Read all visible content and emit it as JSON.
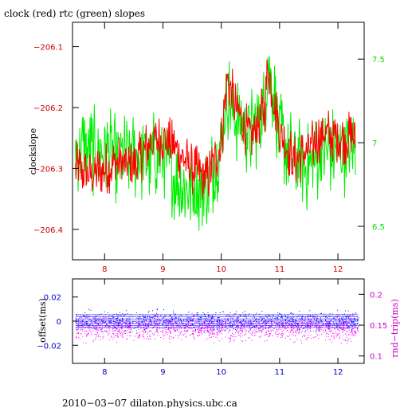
{
  "chart_data": [
    {
      "type": "line",
      "title": "clock (red) rtc (green) slopes",
      "ylabel": "clockslope",
      "xlim": [
        7.45,
        12.45
      ],
      "ylim": [
        -206.45,
        -206.06
      ],
      "y2lim": [
        6.3,
        7.72
      ],
      "x_ticks": [
        8,
        9,
        10,
        11,
        12
      ],
      "y_ticks": [
        -206.1,
        -206.2,
        -206.3,
        -206.4
      ],
      "y2_ticks": [
        6.5,
        7,
        7.5
      ],
      "grid": false,
      "series": [
        {
          "color": "#ff0000",
          "axis": "left",
          "x": [
            7.5,
            7.75,
            8,
            8.25,
            8.5,
            8.75,
            9,
            9.25,
            9.5,
            9.75,
            10,
            10.1,
            10.25,
            10.5,
            10.75,
            10.8,
            11,
            11.25,
            11.5,
            11.75,
            12,
            12.3
          ],
          "y": [
            -206.3,
            -206.31,
            -206.3,
            -206.29,
            -206.3,
            -206.26,
            -206.25,
            -206.27,
            -206.3,
            -206.32,
            -206.26,
            -206.15,
            -206.2,
            -206.25,
            -206.2,
            -206.13,
            -206.24,
            -206.29,
            -206.27,
            -206.24,
            -206.25,
            -206.25
          ]
        },
        {
          "color": "#00ee00",
          "axis": "right",
          "x": [
            7.5,
            7.75,
            8,
            8.25,
            8.5,
            8.75,
            9,
            9.25,
            9.5,
            9.75,
            10,
            10.1,
            10.25,
            10.5,
            10.75,
            10.8,
            11,
            11.25,
            11.5,
            11.75,
            12,
            12.3
          ],
          "y": [
            6.98,
            6.95,
            6.95,
            6.9,
            6.92,
            6.9,
            6.95,
            6.75,
            6.72,
            6.72,
            7.0,
            7.3,
            7.15,
            7.05,
            7.2,
            7.5,
            7.05,
            6.9,
            6.85,
            6.95,
            6.95,
            6.95
          ]
        }
      ]
    },
    {
      "type": "scatter",
      "ylabel": "offset(ms)",
      "y2label": "rnd−trip(ms)",
      "xlim": [
        7.45,
        12.45
      ],
      "ylim": [
        -0.035,
        0.035
      ],
      "y2lim": [
        0.088,
        0.225
      ],
      "x_ticks": [
        8,
        9,
        10,
        11,
        12
      ],
      "y_ticks": [
        0.02,
        0,
        -0.02
      ],
      "y2_ticks": [
        0.2,
        0.15,
        0.1
      ],
      "y_tick_labels": [
        "0.02",
        "0",
        "−0.02"
      ],
      "y2_tick_labels": [
        "0.2",
        "0.15",
        "0.1"
      ],
      "series": [
        {
          "color": "#0000ff",
          "axis": "left",
          "center": 0.0,
          "spread": 0.007
        },
        {
          "color": "#ff00ff",
          "axis": "right",
          "center": 0.145,
          "spread": 0.02
        }
      ]
    }
  ],
  "footer": "2010−03−07 dilaton.physics.ubc.ca",
  "colors": {
    "left_axis_top": "#cc0000",
    "right_axis_top": "#00dd00",
    "left_axis_bottom": "#0000cc",
    "right_axis_bottom": "#cc00cc"
  }
}
